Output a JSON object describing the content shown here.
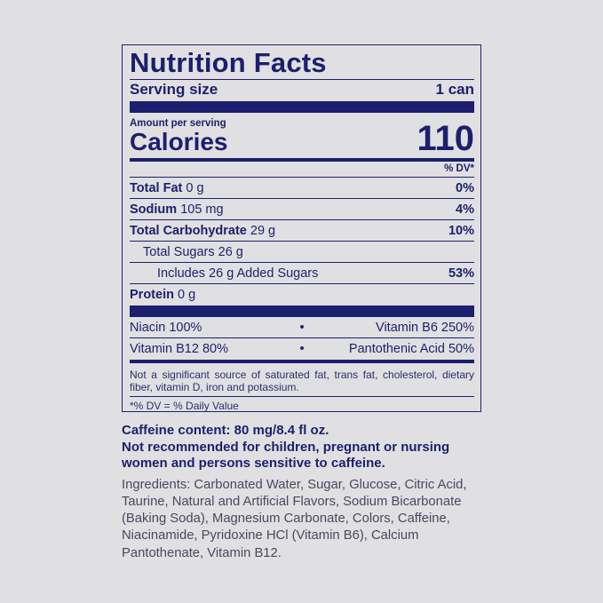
{
  "label": {
    "title": "Nutrition Facts",
    "serving_label": "Serving size",
    "serving_value": "1 can",
    "amount_per_serving": "Amount per serving",
    "calories_label": "Calories",
    "calories_value": "110",
    "dv_header": "% DV*",
    "nutrients": [
      {
        "name": "Total Fat",
        "amount": "0 g",
        "dv": "0%"
      },
      {
        "name": "Sodium",
        "amount": "105 mg",
        "dv": "4%"
      },
      {
        "name": "Total Carbohydrate",
        "amount": "29 g",
        "dv": "10%"
      },
      {
        "name": "Total Sugars",
        "amount": "26 g",
        "dv": ""
      },
      {
        "name": "Includes 26 g Added Sugars",
        "amount": "",
        "dv": "53%"
      },
      {
        "name": "Protein",
        "amount": "0 g",
        "dv": ""
      }
    ],
    "vitamins": [
      {
        "left": "Niacin 100%",
        "right": "Vitamin B6 250%"
      },
      {
        "left": "Vitamin B12 80%",
        "right": "Pantothenic Acid 50%"
      }
    ],
    "bullet": "•",
    "note": "Not a significant source of saturated fat, trans fat, cholesterol, dietary fiber, vitamin D, iron and potassium.",
    "footnote": "*% DV = % Daily Value"
  },
  "caffeine": "Caffeine content: 80 mg/8.4 fl oz.",
  "warning": "Not recommended for children, pregnant or nursing women and persons sensitive to caffeine.",
  "ingredients": "Ingredients: Carbonated Water, Sugar, Glucose, Citric Acid, Taurine, Natural and Artificial Flavors, Sodium Bicarbonate (Baking Soda), Magnesium Carbonate, Colors, Caffeine, Niacinamide, Pyridoxine HCl (Vitamin B6), Calcium Pantothenate, Vitamin B12.",
  "colors": {
    "ink": "#1c1f6e",
    "background": "#e0e0e2"
  }
}
